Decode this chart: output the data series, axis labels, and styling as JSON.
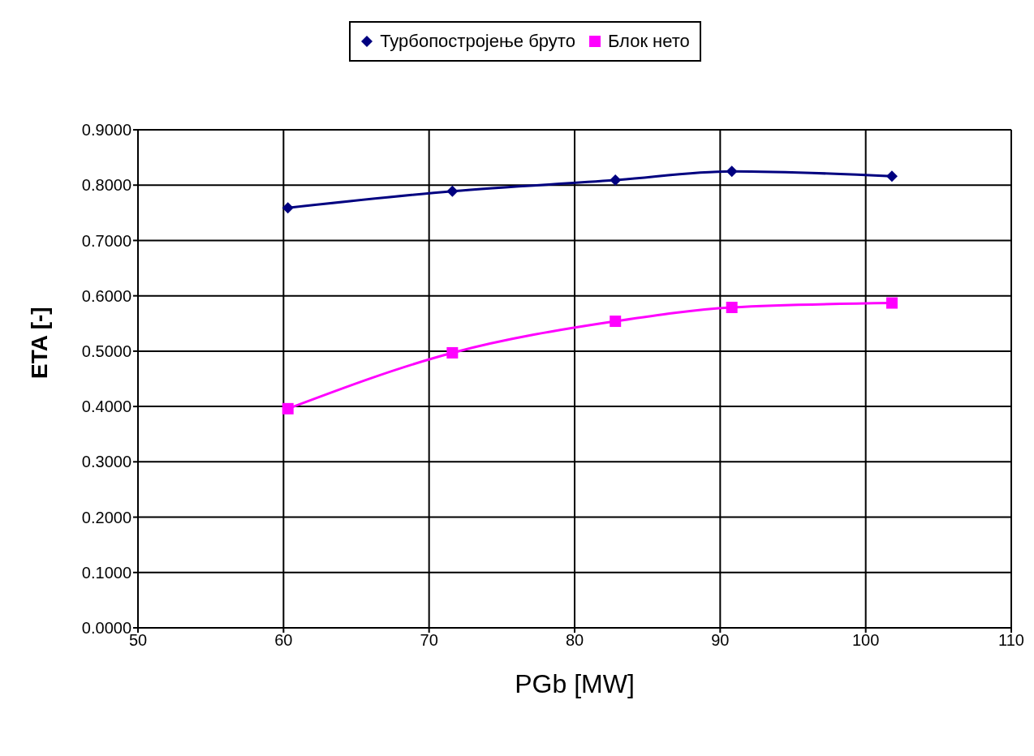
{
  "chart_data": {
    "type": "line",
    "xlabel": "PGb [MW]",
    "ylabel": "ETA [-]",
    "xlim": [
      50,
      110
    ],
    "xticks": [
      50,
      60,
      70,
      80,
      90,
      100,
      110
    ],
    "ylim": [
      0,
      0.9
    ],
    "yticks": [
      {
        "value": 0,
        "label": "0.0000"
      },
      {
        "value": 0.1,
        "label": "0.1000"
      },
      {
        "value": 0.2,
        "label": "0.2000"
      },
      {
        "value": 0.3,
        "label": "0.3000"
      },
      {
        "value": 0.4,
        "label": "0.4000"
      },
      {
        "value": 0.5,
        "label": "0.5000"
      },
      {
        "value": 0.6,
        "label": "0.6000"
      },
      {
        "value": 0.7,
        "label": "0.7000"
      },
      {
        "value": 0.8,
        "label": "0.8000"
      },
      {
        "value": 0.9,
        "label": "0.9000"
      }
    ],
    "grid": true,
    "legend": "top",
    "series": [
      {
        "name": "Турбопостројење бруто",
        "color": "#000080",
        "marker": "diamond",
        "x": [
          60.3,
          71.6,
          82.8,
          90.8,
          101.8
        ],
        "values": [
          0.759,
          0.789,
          0.809,
          0.825,
          0.816
        ]
      },
      {
        "name": "Блок нето",
        "color": "#ff00ff",
        "marker": "square",
        "x": [
          60.3,
          71.6,
          82.8,
          90.8,
          101.8
        ],
        "values": [
          0.396,
          0.497,
          0.554,
          0.579,
          0.587
        ]
      }
    ]
  }
}
